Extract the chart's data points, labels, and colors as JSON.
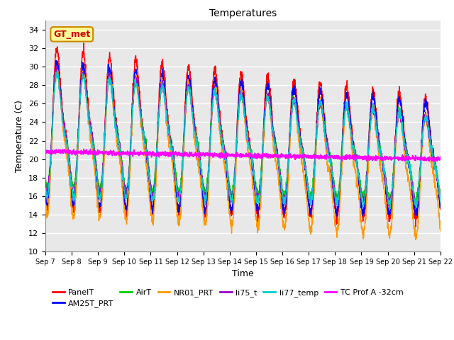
{
  "title": "Temperatures",
  "xlabel": "Time",
  "ylabel": "Temperature (C)",
  "ylim": [
    10,
    35
  ],
  "yticks": [
    10,
    12,
    14,
    16,
    18,
    20,
    22,
    24,
    26,
    28,
    30,
    32,
    34
  ],
  "series": {
    "PanelT": {
      "color": "#ff0000",
      "lw": 1.0
    },
    "AM25T_PRT": {
      "color": "#0000ff",
      "lw": 1.0
    },
    "AirT": {
      "color": "#00cc00",
      "lw": 1.0
    },
    "NR01_PRT": {
      "color": "#ff9900",
      "lw": 1.0
    },
    "li75_t": {
      "color": "#9900cc",
      "lw": 1.0
    },
    "li77_temp": {
      "color": "#00cccc",
      "lw": 1.0
    },
    "TC Prof A -32cm": {
      "color": "#ff00ff",
      "lw": 1.2
    }
  },
  "annotation": {
    "text": "GT_met",
    "color": "#cc0000",
    "bg": "#ffff99",
    "edge": "#cc8800",
    "fontsize": 9
  },
  "xtick_labels": [
    "Sep 7",
    "Sep 8",
    "Sep 9",
    "Sep 10",
    "Sep 11",
    "Sep 12",
    "Sep 13",
    "Sep 14",
    "Sep 15",
    "Sep 16",
    "Sep 17",
    "Sep 18",
    "Sep 19",
    "Sep 20",
    "Sep 21",
    "Sep 22"
  ],
  "background_color": "#e8e8e8"
}
